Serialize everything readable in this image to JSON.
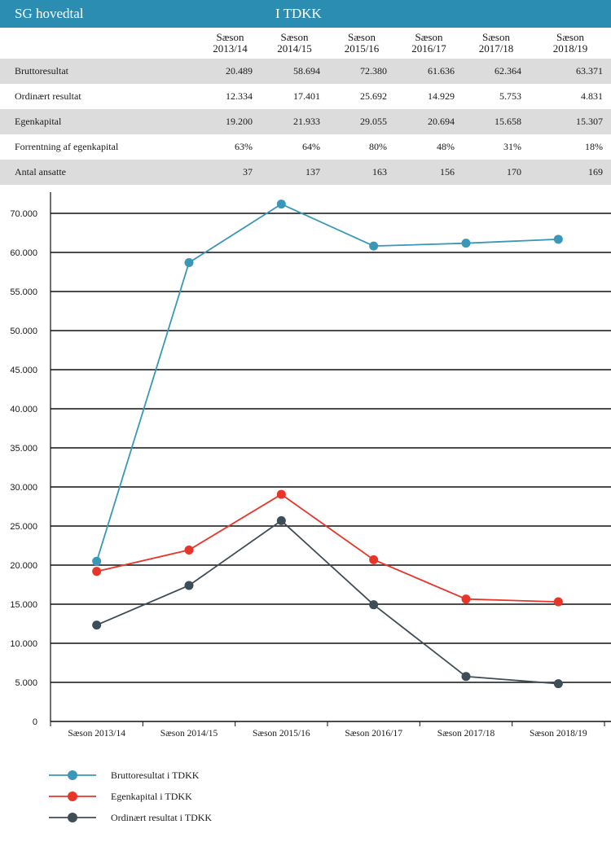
{
  "header": {
    "left": "SG hovedtal",
    "middle": "I TDKK"
  },
  "table": {
    "columns": [
      [
        "Sæson",
        "2013/14"
      ],
      [
        "Sæson",
        "2014/15"
      ],
      [
        "Sæson",
        "2015/16"
      ],
      [
        "Sæson",
        "2016/17"
      ],
      [
        "Sæson",
        "2017/18"
      ],
      [
        "Sæson",
        "2018/19"
      ]
    ],
    "rows": [
      {
        "label": "Bruttoresultat",
        "values": [
          "20.489",
          "58.694",
          "72.380",
          "61.636",
          "62.364",
          "63.371"
        ]
      },
      {
        "label": "Ordinært resultat",
        "values": [
          "12.334",
          "17.401",
          "25.692",
          "14.929",
          "5.753",
          "4.831"
        ]
      },
      {
        "label": "Egenkapital",
        "values": [
          "19.200",
          "21.933",
          "29.055",
          "20.694",
          "15.658",
          "15.307"
        ]
      },
      {
        "label": "Forrentning af egenkapital",
        "values": [
          "63%",
          "64%",
          "80%",
          "48%",
          "31%",
          "18%"
        ]
      },
      {
        "label": "Antal ansatte",
        "values": [
          "37",
          "137",
          "163",
          "156",
          "170",
          "169"
        ]
      }
    ]
  },
  "chart_data": {
    "type": "line",
    "categories": [
      "Sæson 2013/14",
      "Sæson 2014/15",
      "Sæson 2015/16",
      "Sæson 2016/17",
      "Sæson 2017/18",
      "Sæson 2018/19"
    ],
    "yticks": [
      "0",
      "5.000",
      "10.000",
      "15.000",
      "20.000",
      "25.000",
      "30.000",
      "35.000",
      "40.000",
      "45.000",
      "50.000",
      "55.000",
      "60.000",
      "70.000"
    ],
    "ylim": [
      0,
      70000
    ],
    "grid": true,
    "legend_position": "bottom-left",
    "series": [
      {
        "name": "Bruttoresultat i TDKK",
        "color": "#3a97b8",
        "values": [
          20489,
          58694,
          72380,
          61636,
          62364,
          63371
        ]
      },
      {
        "name": "Egenkapital i TDKK",
        "color": "#e8352a",
        "values": [
          19200,
          21933,
          29055,
          20694,
          15658,
          15307
        ]
      },
      {
        "name": "Ordinært resultat i TDKK",
        "color": "#3f4d56",
        "values": [
          12334,
          17401,
          25692,
          14929,
          5753,
          4831
        ]
      }
    ]
  }
}
